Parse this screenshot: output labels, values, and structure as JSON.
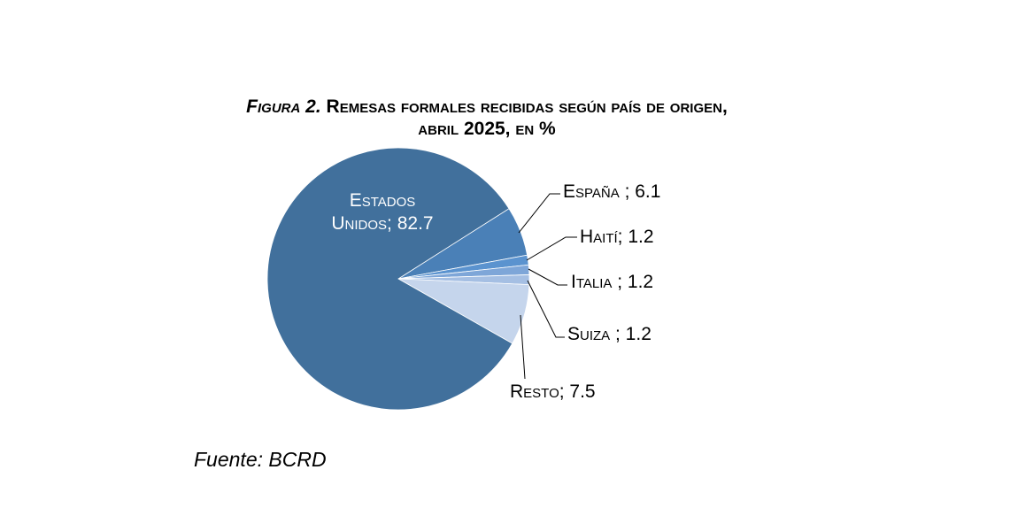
{
  "chart_data": {
    "type": "pie",
    "title_prefix": "Figura 2.",
    "title_rest": "Remesas formales recibidas según país de origen,",
    "title_line2": "abril 2025, en %",
    "labels": [
      "Estados Unidos",
      "España",
      "Haití",
      "Italia",
      "Suiza",
      "Resto"
    ],
    "values": [
      82.7,
      6.1,
      1.2,
      1.2,
      1.2,
      7.5
    ],
    "data_labels": [
      "Estados Unidos; 82.7",
      "España ; 6.1",
      "Haití; 1.2",
      "Italia ; 1.2",
      "Suiza ; 1.2",
      "Resto; 7.5"
    ],
    "label_lines": {
      "us_line1": "Estados",
      "us_line2": "Unidos; 82.7"
    },
    "colors": [
      "#41709c",
      "#4a80b7",
      "#5b93cf",
      "#7ea6d8",
      "#a5bfe3",
      "#c5d5ec"
    ],
    "source": "Fuente: BCRD"
  }
}
